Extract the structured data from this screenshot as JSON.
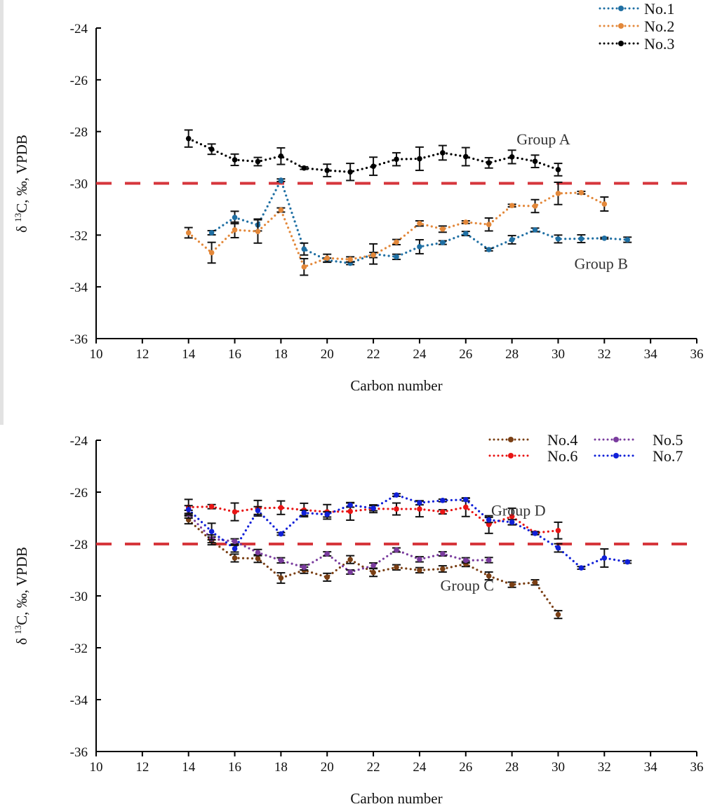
{
  "chart_data": [
    {
      "type": "line",
      "xlabel": "Carbon number",
      "ylabel": {
        "prefix": "δ ",
        "sup": "13",
        "rest": "C, ‰, VPDB"
      },
      "xlim": [
        10,
        36
      ],
      "ylim": [
        -36,
        -24
      ],
      "xticks": [
        10,
        12,
        14,
        16,
        18,
        20,
        22,
        24,
        26,
        28,
        30,
        32,
        34,
        36
      ],
      "yticks": [
        -24,
        -26,
        -28,
        -30,
        -32,
        -34,
        -36
      ],
      "reference_line": {
        "y": -30,
        "color": "#d6363c",
        "style": "dashed"
      },
      "legend_position": "top-right",
      "annotations": [
        {
          "text": "Group A",
          "x": 28.2,
          "y": -28.5
        },
        {
          "text": "Group B",
          "x": 30.7,
          "y": -33.3
        }
      ],
      "series": [
        {
          "name": "No.1",
          "color": "#1f6fa3",
          "x": [
            15,
            16,
            17,
            18,
            19,
            20,
            21,
            22,
            23,
            24,
            25,
            26,
            27,
            28,
            29,
            30,
            31,
            32,
            33
          ],
          "y": [
            -31.91,
            -31.32,
            -31.61,
            -29.88,
            -32.54,
            -32.97,
            -33.09,
            -32.73,
            -32.84,
            -32.45,
            -32.29,
            -31.94,
            -32.56,
            -32.18,
            -31.8,
            -32.15,
            -32.14,
            -32.12,
            -32.18
          ],
          "err": [
            0.08,
            0.24,
            0.23,
            0.05,
            0.23,
            0.08,
            0.05,
            0.39,
            0.1,
            0.27,
            0.07,
            0.08,
            0.05,
            0.16,
            0.07,
            0.15,
            0.15,
            0.03,
            0.1
          ]
        },
        {
          "name": "No.2",
          "color": "#e3883a",
          "x": [
            14,
            15,
            16,
            17,
            18,
            19,
            20,
            21,
            22,
            23,
            24,
            25,
            26,
            27,
            28,
            29,
            30,
            31,
            32
          ],
          "y": [
            -31.91,
            -32.68,
            -31.8,
            -31.86,
            -31.03,
            -33.23,
            -32.89,
            -32.94,
            -32.77,
            -32.27,
            -31.55,
            -31.77,
            -31.5,
            -31.59,
            -30.86,
            -30.88,
            -30.39,
            -30.36,
            -30.8
          ],
          "err": [
            0.2,
            0.4,
            0.3,
            0.45,
            0.08,
            0.32,
            0.15,
            0.1,
            0.1,
            0.1,
            0.1,
            0.12,
            0.05,
            0.25,
            0.05,
            0.25,
            0.43,
            0.05,
            0.27
          ]
        },
        {
          "name": "No.3",
          "color": "#000000",
          "x": [
            14,
            15,
            16,
            17,
            18,
            19,
            20,
            21,
            22,
            23,
            24,
            25,
            26,
            27,
            28,
            29,
            30
          ],
          "y": [
            -28.27,
            -28.68,
            -29.09,
            -29.16,
            -28.95,
            -29.41,
            -29.5,
            -29.56,
            -29.34,
            -29.07,
            -29.05,
            -28.82,
            -28.97,
            -29.21,
            -28.98,
            -29.15,
            -29.47
          ],
          "err": [
            0.33,
            0.2,
            0.22,
            0.16,
            0.32,
            0.05,
            0.24,
            0.33,
            0.35,
            0.25,
            0.45,
            0.28,
            0.35,
            0.2,
            0.26,
            0.24,
            0.24
          ]
        }
      ]
    },
    {
      "type": "line",
      "xlabel": "Carbon number",
      "ylabel": {
        "prefix": "δ ",
        "sup": "13",
        "rest": "C, ‰, VPDB"
      },
      "xlim": [
        10,
        36
      ],
      "ylim": [
        -36,
        -24
      ],
      "xticks": [
        10,
        12,
        14,
        16,
        18,
        20,
        22,
        24,
        26,
        28,
        30,
        32,
        34,
        36
      ],
      "yticks": [
        -24,
        -26,
        -28,
        -30,
        -32,
        -34,
        -36
      ],
      "reference_line": {
        "y": -28,
        "color": "#d6363c",
        "style": "dashed"
      },
      "legend_position": "top-right",
      "annotations": [
        {
          "text": "Group D",
          "x": 27.1,
          "y": -26.9
        },
        {
          "text": "Group C",
          "x": 24.9,
          "y": -29.8
        }
      ],
      "series": [
        {
          "name": "No.4",
          "color": "#7a3f14",
          "x": [
            14,
            15,
            16,
            17,
            18,
            19,
            20,
            21,
            22,
            23,
            24,
            25,
            26,
            27,
            28,
            29,
            30
          ],
          "y": [
            -27.07,
            -27.88,
            -28.54,
            -28.56,
            -29.31,
            -29.01,
            -29.28,
            -28.6,
            -29.1,
            -28.9,
            -29.01,
            -28.96,
            -28.77,
            -29.23,
            -29.57,
            -29.48,
            -30.72
          ],
          "err": [
            0.15,
            0.15,
            0.15,
            0.15,
            0.2,
            0.12,
            0.15,
            0.15,
            0.15,
            0.1,
            0.1,
            0.12,
            0.1,
            0.15,
            0.1,
            0.1,
            0.15
          ]
        },
        {
          "name": "No.5",
          "color": "#7a3c9e",
          "x": [
            14,
            15,
            16,
            17,
            18,
            19,
            20,
            21,
            22,
            23,
            24,
            25,
            26,
            27
          ],
          "y": [
            -26.85,
            -27.8,
            -27.9,
            -28.33,
            -28.63,
            -28.9,
            -28.38,
            -29.08,
            -28.83,
            -28.23,
            -28.59,
            -28.38,
            -28.63,
            -28.62
          ],
          "err": [
            0.15,
            0.15,
            0.1,
            0.12,
            0.1,
            0.1,
            0.08,
            0.08,
            0.1,
            0.08,
            0.1,
            0.08,
            0.1,
            0.1
          ]
        },
        {
          "name": "No.6",
          "color": "#e81515",
          "x": [
            14,
            15,
            16,
            17,
            18,
            19,
            20,
            21,
            22,
            23,
            24,
            25,
            26,
            27,
            28,
            29,
            30
          ],
          "y": [
            -26.58,
            -26.56,
            -26.76,
            -26.62,
            -26.6,
            -26.69,
            -26.76,
            -26.74,
            -26.64,
            -26.65,
            -26.65,
            -26.76,
            -26.58,
            -27.25,
            -26.94,
            -27.57,
            -27.48
          ],
          "err": [
            0.3,
            0.08,
            0.34,
            0.3,
            0.26,
            0.26,
            0.28,
            0.34,
            0.15,
            0.23,
            0.3,
            0.08,
            0.36,
            0.34,
            0.32,
            0.05,
            0.32
          ]
        },
        {
          "name": "No.7",
          "color": "#1020d8",
          "x": [
            14,
            15,
            16,
            17,
            18,
            19,
            20,
            21,
            22,
            23,
            24,
            25,
            26,
            27,
            28,
            29,
            30,
            31,
            32,
            33
          ],
          "y": [
            -26.67,
            -27.52,
            -28.18,
            -26.71,
            -27.61,
            -26.8,
            -26.86,
            -26.5,
            -26.62,
            -26.11,
            -26.41,
            -26.32,
            -26.29,
            -27.07,
            -27.16,
            -27.59,
            -28.15,
            -28.92,
            -28.54,
            -28.69
          ],
          "err": [
            0.15,
            0.32,
            0.13,
            0.15,
            0.05,
            0.1,
            0.1,
            0.08,
            0.1,
            0.05,
            0.08,
            0.05,
            0.05,
            0.1,
            0.1,
            0.05,
            0.16,
            0.05,
            0.35,
            0.05
          ]
        }
      ]
    }
  ]
}
